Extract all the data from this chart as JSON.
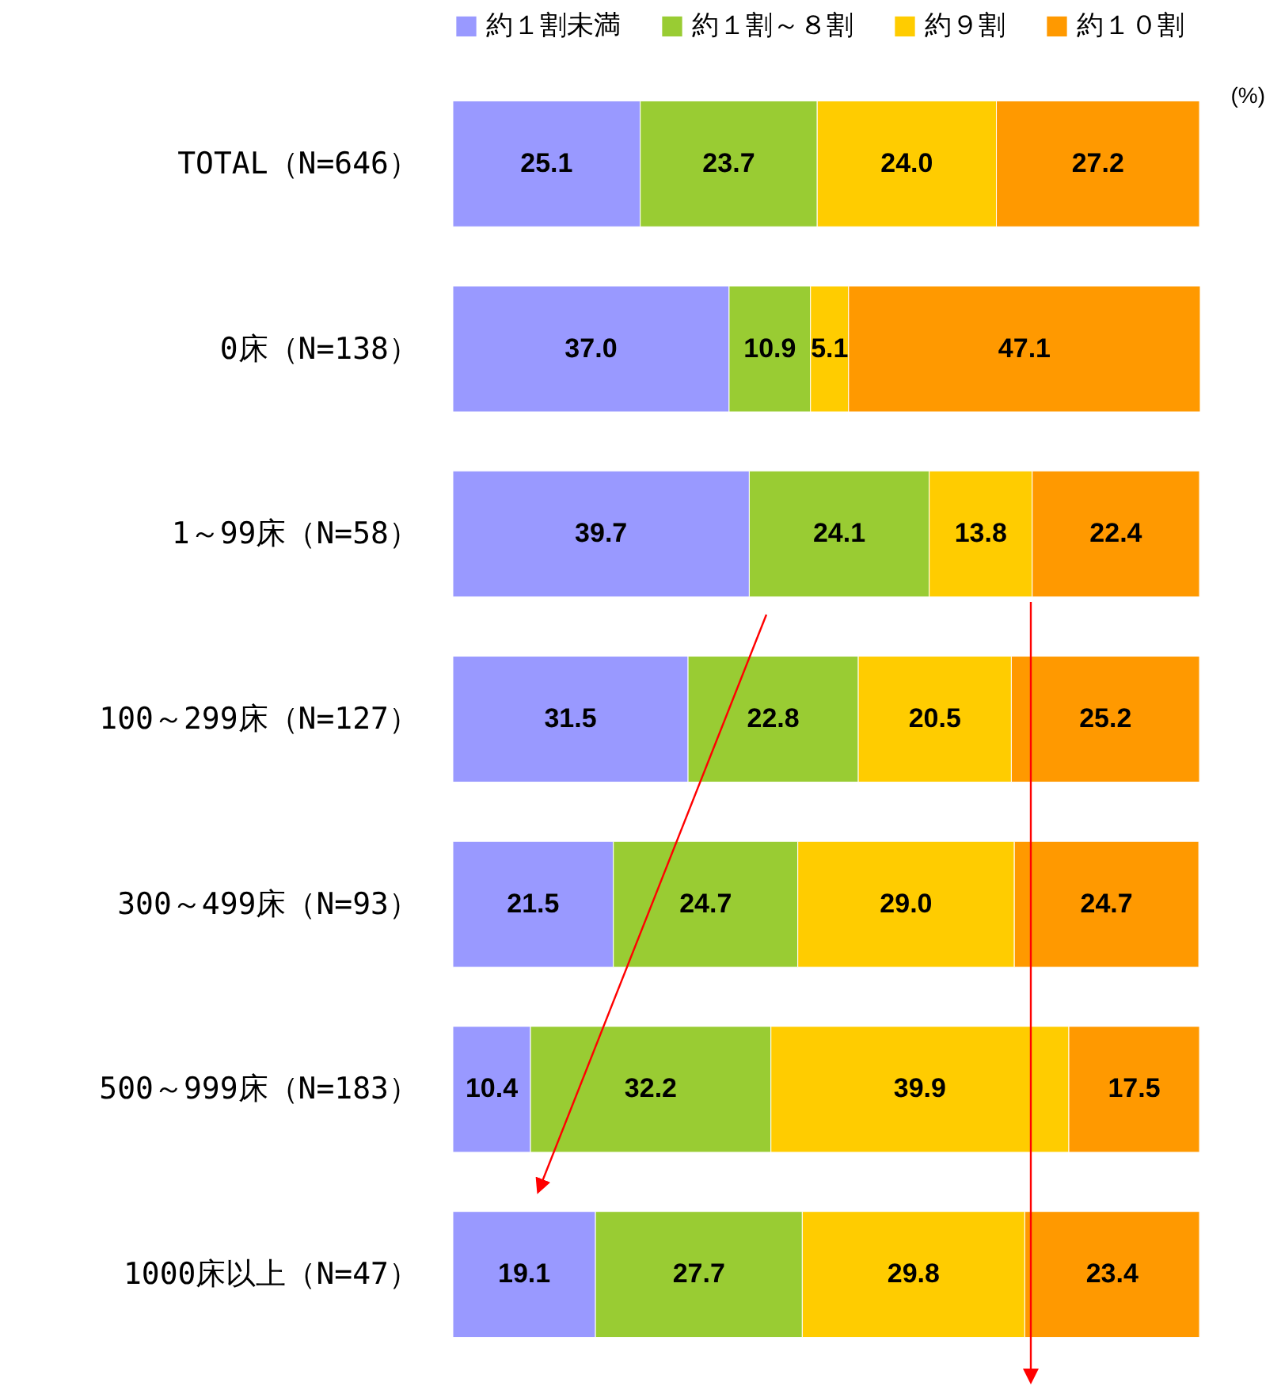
{
  "chart_data": {
    "type": "bar",
    "orientation": "horizontal",
    "stacked": true,
    "legend": "top",
    "categories": [
      "TOTAL（N=646）",
      "0床（N=138）",
      "1～99床（N=58）",
      "100～299床（N=127）",
      "300～499床（N=93）",
      "500～999床（N=183）",
      "1000床以上（N=47）"
    ],
    "series": [
      {
        "name": "約１割未満",
        "color": "#9999ff",
        "values": [
          25.1,
          37.0,
          39.7,
          31.5,
          21.5,
          10.4,
          19.1
        ],
        "value_labels": [
          "25.1",
          "37.0",
          "39.7",
          "31.5",
          "21.5",
          "10.4",
          "19.1"
        ]
      },
      {
        "name": "約１割～８割",
        "color": "#99cc33",
        "values": [
          23.7,
          10.9,
          24.1,
          22.8,
          24.7,
          32.2,
          27.7
        ],
        "value_labels": [
          "23.7",
          "10.9",
          "24.1",
          "22.8",
          "24.7",
          "32.2",
          "27.7"
        ]
      },
      {
        "name": "約９割",
        "color": "#ffcc00",
        "values": [
          24.0,
          5.1,
          13.8,
          20.5,
          29.0,
          39.9,
          29.8
        ],
        "value_labels": [
          "24.0",
          "5.1",
          "13.8",
          "20.5",
          "29.0",
          "39.9",
          "29.8"
        ]
      },
      {
        "name": "約１０割",
        "color": "#ff9900",
        "values": [
          27.2,
          47.1,
          22.4,
          25.2,
          24.7,
          17.5,
          23.4
        ],
        "value_labels": [
          "27.2",
          "47.1",
          "22.4",
          "25.2",
          "24.7",
          "17.5",
          "23.4"
        ]
      }
    ],
    "annotations": [
      "(%)"
    ]
  }
}
